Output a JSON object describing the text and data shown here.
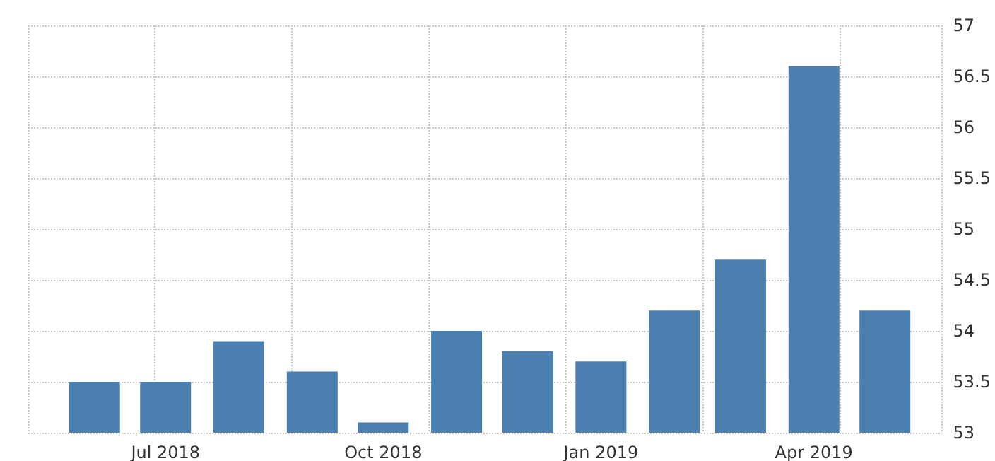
{
  "chart_data": {
    "type": "bar",
    "x": [
      "2018-06",
      "2018-07",
      "2018-08",
      "2018-09",
      "2018-10",
      "2018-11",
      "2018-12",
      "2019-01",
      "2019-02",
      "2019-03",
      "2019-04",
      "2019-05"
    ],
    "values": [
      53.5,
      53.5,
      53.9,
      53.6,
      53.1,
      54.0,
      53.8,
      53.7,
      54.2,
      54.7,
      56.6,
      54.2
    ],
    "color": "#4a7fb0",
    "xlim": [
      "2018-05-04",
      "2019-05-25"
    ],
    "xticks": [
      {
        "value": "2018-07",
        "label": "Jul 2018"
      },
      {
        "value": "2018-10",
        "label": "Oct 2018"
      },
      {
        "value": "2019-01",
        "label": "Jan 2019"
      },
      {
        "value": "2019-04",
        "label": "Apr 2019"
      }
    ],
    "ylim": [
      53,
      57
    ],
    "yticks": [
      53,
      53.5,
      54,
      54.5,
      55,
      55.5,
      56,
      56.5,
      57
    ],
    "grid": true
  }
}
